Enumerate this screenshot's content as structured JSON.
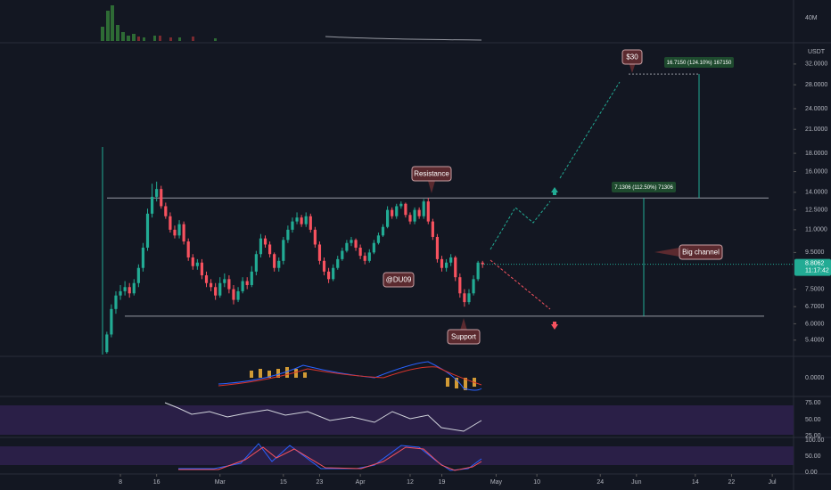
{
  "chart_data": {
    "type": "candlestick",
    "currency": "USDT",
    "log_scale": true,
    "up_color": "#22ab94",
    "down_color": "#f7525f",
    "x": [
      36,
      37,
      38,
      39,
      40,
      41,
      42,
      43,
      44,
      45,
      46,
      47,
      48,
      49,
      50,
      51,
      52,
      53,
      54,
      55,
      56,
      57,
      58,
      59,
      60,
      61,
      62,
      63,
      64,
      65,
      66,
      67,
      68,
      69,
      70,
      71,
      72,
      73,
      74,
      75,
      76,
      77,
      78,
      79,
      80,
      81,
      82,
      83,
      84,
      85,
      86,
      87,
      88,
      89,
      90,
      91,
      92,
      93,
      94,
      95,
      96,
      97,
      98,
      99,
      100,
      101,
      102,
      103,
      104,
      105,
      106,
      107,
      108,
      109,
      110,
      111,
      112,
      113,
      114,
      115,
      116,
      117,
      118,
      119
    ],
    "open": [
      5.0,
      5.6,
      6.6,
      7.2,
      7.4,
      7.6,
      7.3,
      7.8,
      8.6,
      9.8,
      12.2,
      13.6,
      14.3,
      12.8,
      12.0,
      11.0,
      10.6,
      11.4,
      10.2,
      9.2,
      8.7,
      8.9,
      8.2,
      7.8,
      7.6,
      7.2,
      7.8,
      8.0,
      7.5,
      7.0,
      7.4,
      7.9,
      7.7,
      8.4,
      9.4,
      10.4,
      10.0,
      9.4,
      8.6,
      9.0,
      10.3,
      11.0,
      11.6,
      11.9,
      11.4,
      12.0,
      11.0,
      10.0,
      9.0,
      8.4,
      8.0,
      8.6,
      9.1,
      9.6,
      10.1,
      10.3,
      9.8,
      9.3,
      9.0,
      9.5,
      10.1,
      10.6,
      11.2,
      12.5,
      12.0,
      12.8,
      13.0,
      12.1,
      11.6,
      12.5,
      12.0,
      13.2,
      11.6,
      10.5,
      9.1,
      8.6,
      8.9,
      9.2,
      8.1,
      7.3,
      6.9,
      7.3,
      8.0,
      8.9
    ],
    "high": [
      5.7,
      6.8,
      7.4,
      7.7,
      7.9,
      7.8,
      8.0,
      8.8,
      10.1,
      12.6,
      14.8,
      15.0,
      14.6,
      13.1,
      12.3,
      11.3,
      11.7,
      11.6,
      10.4,
      9.4,
      9.1,
      9.1,
      8.4,
      8.0,
      7.8,
      8.1,
      8.3,
      8.2,
      7.7,
      7.6,
      8.1,
      8.1,
      8.7,
      9.6,
      10.7,
      10.6,
      10.2,
      9.5,
      9.2,
      10.5,
      11.3,
      11.9,
      12.3,
      12.1,
      12.3,
      12.2,
      11.2,
      10.2,
      9.2,
      8.6,
      8.8,
      9.3,
      9.8,
      10.3,
      10.5,
      10.4,
      10.0,
      9.5,
      9.7,
      10.3,
      10.8,
      11.4,
      12.8,
      12.7,
      13.0,
      13.2,
      13.1,
      12.3,
      12.7,
      12.7,
      13.4,
      13.5,
      11.8,
      10.7,
      9.3,
      9.1,
      9.4,
      9.3,
      8.3,
      7.5,
      7.5,
      8.2,
      9.0,
      9.0
    ],
    "low": [
      4.95,
      5.5,
      6.4,
      7.0,
      7.2,
      7.1,
      7.2,
      7.6,
      8.4,
      9.6,
      11.9,
      13.2,
      12.6,
      11.8,
      10.8,
      10.4,
      10.4,
      10.0,
      9.0,
      8.5,
      8.5,
      8.0,
      7.6,
      7.4,
      7.0,
      7.1,
      7.6,
      7.3,
      6.8,
      6.9,
      7.3,
      7.5,
      7.6,
      8.2,
      9.2,
      9.8,
      9.2,
      8.4,
      8.4,
      8.8,
      10.1,
      10.8,
      11.4,
      11.2,
      11.2,
      10.8,
      9.8,
      8.8,
      8.2,
      7.8,
      7.9,
      8.5,
      9.0,
      9.5,
      9.9,
      9.6,
      9.1,
      8.8,
      8.9,
      9.4,
      10.0,
      10.5,
      11.1,
      11.8,
      11.8,
      12.6,
      11.9,
      11.4,
      11.4,
      11.8,
      11.8,
      11.4,
      10.3,
      8.9,
      8.4,
      8.4,
      8.7,
      7.9,
      7.1,
      6.7,
      6.8,
      7.2,
      7.9,
      8.6
    ],
    "close": [
      5.6,
      6.6,
      7.2,
      7.4,
      7.6,
      7.3,
      7.8,
      8.6,
      9.8,
      12.2,
      13.6,
      14.3,
      12.8,
      12.0,
      11.0,
      10.6,
      11.4,
      10.2,
      9.2,
      8.7,
      8.9,
      8.2,
      7.8,
      7.6,
      7.2,
      7.8,
      8.0,
      7.5,
      7.0,
      7.4,
      7.9,
      7.7,
      8.4,
      9.4,
      10.4,
      10.0,
      9.4,
      8.6,
      9.0,
      10.3,
      11.0,
      11.6,
      11.9,
      11.4,
      12.0,
      11.0,
      10.0,
      9.0,
      8.4,
      8.0,
      8.6,
      9.1,
      9.6,
      10.1,
      10.3,
      9.8,
      9.3,
      9.0,
      9.5,
      10.1,
      10.6,
      11.2,
      12.5,
      12.0,
      12.8,
      13.0,
      12.1,
      11.6,
      12.5,
      12.0,
      13.2,
      11.6,
      10.5,
      9.1,
      8.6,
      8.9,
      9.2,
      8.1,
      7.3,
      6.9,
      7.3,
      8.0,
      8.9,
      8.8
    ],
    "last_price": 8.8062,
    "countdown": "11:17:42",
    "xlim": [
      12.4,
      187.7
    ],
    "xticks": [
      {
        "value": 39,
        "label": "8"
      },
      {
        "value": 47,
        "label": "16"
      },
      {
        "value": 61,
        "label": "Mar"
      },
      {
        "value": 75,
        "label": "15"
      },
      {
        "value": 83,
        "label": "23"
      },
      {
        "value": 92,
        "label": "Apr"
      },
      {
        "value": 103,
        "label": "12"
      },
      {
        "value": 110,
        "label": "19"
      },
      {
        "value": 122,
        "label": "May"
      },
      {
        "value": 131,
        "label": "10"
      },
      {
        "value": 145,
        "label": "24"
      },
      {
        "value": 153,
        "label": "Jun"
      },
      {
        "value": 166,
        "label": "14"
      },
      {
        "value": 174,
        "label": "22"
      },
      {
        "value": 183,
        "label": "Jul"
      }
    ],
    "ylim": [
      4.92,
      36.7
    ],
    "yticks": [
      {
        "value": 5.4,
        "label": "5.4000"
      },
      {
        "value": 6.0,
        "label": "6.0000"
      },
      {
        "value": 6.7,
        "label": "6.7000"
      },
      {
        "value": 7.5,
        "label": "7.5000"
      },
      {
        "value": 9.5,
        "label": "9.5000"
      },
      {
        "value": 11.0,
        "label": "11.0000"
      },
      {
        "value": 12.5,
        "label": "12.5000"
      },
      {
        "value": 14.0,
        "label": "14.0000"
      },
      {
        "value": 16.0,
        "label": "16.0000"
      },
      {
        "value": 18.0,
        "label": "18.0000"
      },
      {
        "value": 21.0,
        "label": "21.0000"
      },
      {
        "value": 24.0,
        "label": "24.0000"
      },
      {
        "value": 28.0,
        "label": "28.0000"
      },
      {
        "value": 32.0,
        "label": "32.0000"
      }
    ],
    "resistance": 13.5,
    "support": 6.3,
    "target": 30,
    "annotations": {
      "target_label": "$30",
      "resistance_label": "Resistance",
      "support_label": "Support",
      "channel_label": "Big channel",
      "author": "@DU09",
      "measure_top": "16.7150 (124.10%) 167150",
      "measure_channel": "7.1306 (112.50%) 71306"
    },
    "indicator_labels": {
      "volume": "40M",
      "macd_zero": "0.0000",
      "rsi": [
        "75.00",
        "50.00",
        "25.00"
      ],
      "stoch": [
        "100.00",
        "50.00",
        "0.00"
      ]
    }
  }
}
